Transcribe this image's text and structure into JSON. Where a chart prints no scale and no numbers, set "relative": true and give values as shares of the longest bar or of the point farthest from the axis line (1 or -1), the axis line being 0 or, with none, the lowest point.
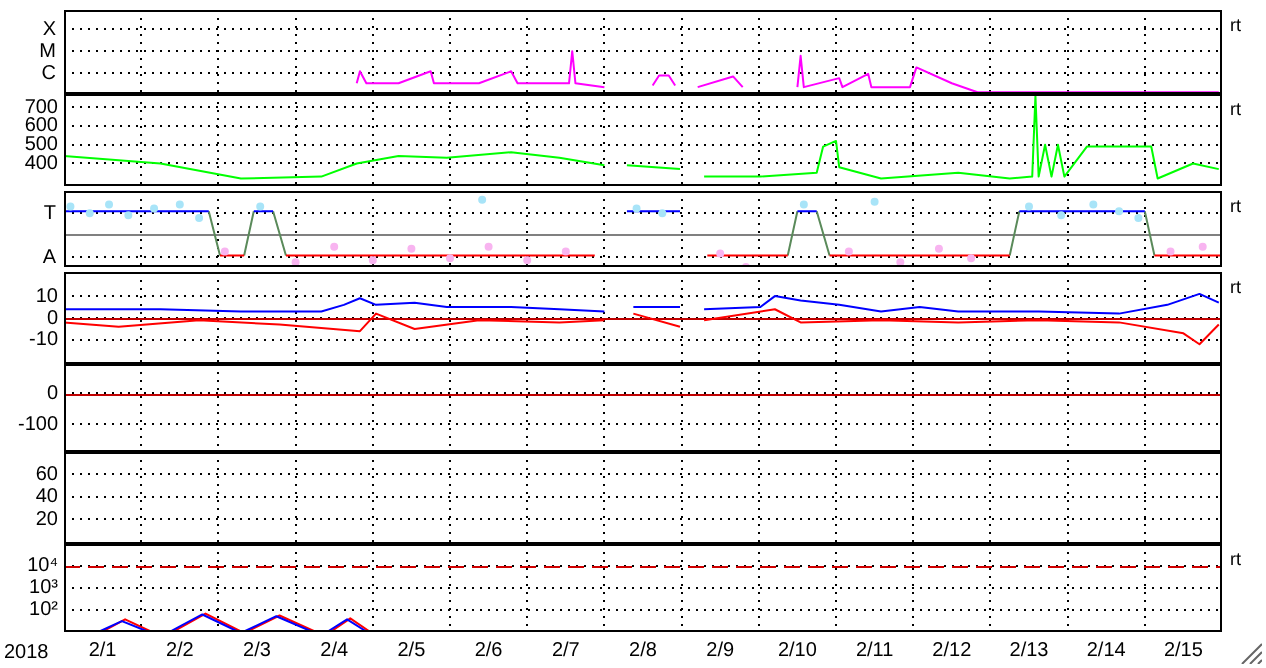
{
  "chart_data": [
    {
      "type": "line",
      "relative": true,
      "tick_labels": "y",
      "grid": true,
      "xlim": [
        "2018-02-01",
        "2018-02-16"
      ],
      "xticks": [
        {
          "value": "2018-02-02",
          "label": null
        },
        {
          "value": "2018-02-03",
          "label": null
        },
        {
          "value": "2018-02-04",
          "label": null
        },
        {
          "value": "2018-02-05",
          "label": null
        },
        {
          "value": "2018-02-06",
          "label": null
        },
        {
          "value": "2018-02-07",
          "label": null
        },
        {
          "value": "2018-02-08",
          "label": null
        },
        {
          "value": "2018-02-09",
          "label": null
        },
        {
          "value": "2018-02-10",
          "label": null
        },
        {
          "value": "2018-02-11",
          "label": null
        },
        {
          "value": "2018-02-12",
          "label": null
        },
        {
          "value": "2018-02-13",
          "label": null
        },
        {
          "value": "2018-02-14",
          "label": null
        },
        {
          "value": "2018-02-15",
          "label": null
        }
      ],
      "annotations": [
        "rt",
        "X",
        "M",
        "C"
      ],
      "series": [
        {
          "color": "#ff00ff",
          "x": [
            "2018-02-04T19:00",
            "2018-02-04T20:00",
            "2018-02-04T22:00",
            "2018-02-05T08:00",
            "2018-02-05T18:00",
            "2018-02-05T19:00",
            "2018-02-06T09:00",
            "2018-02-06T19:00",
            "2018-02-06T21:00",
            "2018-02-07T13:00",
            "2018-02-07T14:00",
            "2018-02-07T15:00",
            "2018-02-08T00:00",
            "2018-02-08T06:00",
            "2018-02-08T15:00",
            "2018-02-08T17:00",
            "2018-02-08T20:00",
            "2018-02-08T22:00",
            "2018-02-09T02:00",
            "2018-02-09T05:00",
            "2018-02-09T16:00",
            "2018-02-09T19:00",
            "2018-02-10T06:00",
            "2018-02-10T12:00",
            "2018-02-10T13:00",
            "2018-02-10T14:00",
            "2018-02-11T01:00",
            "2018-02-11T02:00",
            "2018-02-11T10:00",
            "2018-02-11T11:00",
            "2018-02-11T23:00",
            "2018-02-12T01:00",
            "2018-02-12T12:00",
            "2018-02-12T20:00",
            "2018-02-15T23:00"
          ],
          "values": [
            0.25,
            0.53,
            0.25,
            0.25,
            0.53,
            0.25,
            0.25,
            0.53,
            0.25,
            0.25,
            1,
            0.25,
            0.16,
            null,
            0.2,
            0.43,
            0.43,
            0.2,
            null,
            0.16,
            0.41,
            0.16,
            null,
            0.16,
            0.89,
            0.16,
            0.37,
            0.16,
            0.47,
            0.16,
            0.16,
            0.62,
            0.25,
            0.04,
            0.04
          ]
        }
      ]
    },
    {
      "type": "line",
      "tick_labels": "y",
      "grid": true,
      "xlim": [
        "2018-02-01",
        "2018-02-16"
      ],
      "xticks": [
        {
          "value": "2018-02-02",
          "label": null
        },
        {
          "value": "2018-02-03",
          "label": null
        },
        {
          "value": "2018-02-04",
          "label": null
        },
        {
          "value": "2018-02-05",
          "label": null
        },
        {
          "value": "2018-02-06",
          "label": null
        },
        {
          "value": "2018-02-07",
          "label": null
        },
        {
          "value": "2018-02-08",
          "label": null
        },
        {
          "value": "2018-02-09",
          "label": null
        },
        {
          "value": "2018-02-10",
          "label": null
        },
        {
          "value": "2018-02-11",
          "label": null
        },
        {
          "value": "2018-02-12",
          "label": null
        },
        {
          "value": "2018-02-13",
          "label": null
        },
        {
          "value": "2018-02-14",
          "label": null
        },
        {
          "value": "2018-02-15",
          "label": null
        }
      ],
      "ylim": [
        280,
        770
      ],
      "yticks": [
        400,
        500,
        600,
        700
      ],
      "annotations": [
        "rt"
      ],
      "series": [
        {
          "color": "#00ff00",
          "x": [
            "2018-02-01T00:00",
            "2018-02-02T06:00",
            "2018-02-03T07:00",
            "2018-02-04T08:00",
            "2018-02-04T19:00",
            "2018-02-05T08:00",
            "2018-02-05T23:00",
            "2018-02-06T19:00",
            "2018-02-07T10:00",
            "2018-02-08T00:00",
            "2018-02-08T03:00",
            "2018-02-08T07:00",
            "2018-02-08T23:30",
            "2018-02-09T03:00",
            "2018-02-09T07:00",
            "2018-02-10T00:30",
            "2018-02-10T18:00",
            "2018-02-10T20:00",
            "2018-02-11T00:00",
            "2018-02-11T01:00",
            "2018-02-11T14:00",
            "2018-02-12T14:00",
            "2018-02-13T06:00",
            "2018-02-13T13:00",
            "2018-02-13T14:00",
            "2018-02-13T15:00",
            "2018-02-13T17:00",
            "2018-02-13T19:00",
            "2018-02-13T21:00",
            "2018-02-13T23:00",
            "2018-02-14T06:00",
            "2018-02-14T19:00",
            "2018-02-15T02:00",
            "2018-02-15T04:00",
            "2018-02-15T15:00",
            "2018-02-15T23:00"
          ],
          "values": [
            440,
            400,
            320,
            330,
            400,
            440,
            430,
            460,
            430,
            390,
            null,
            390,
            370,
            null,
            330,
            330,
            350,
            490,
            520,
            380,
            320,
            350,
            320,
            330,
            760,
            330,
            500,
            330,
            500,
            330,
            490,
            490,
            490,
            320,
            400,
            370
          ]
        }
      ]
    },
    {
      "type": "line",
      "relative": true,
      "tick_labels": "y",
      "grid": true,
      "xlim": [
        "2018-02-01",
        "2018-02-16"
      ],
      "xticks": [
        {
          "value": "2018-02-02",
          "label": null
        },
        {
          "value": "2018-02-03",
          "label": null
        },
        {
          "value": "2018-02-04",
          "label": null
        },
        {
          "value": "2018-02-05",
          "label": null
        },
        {
          "value": "2018-02-06",
          "label": null
        },
        {
          "value": "2018-02-07",
          "label": null
        },
        {
          "value": "2018-02-08",
          "label": null
        },
        {
          "value": "2018-02-09",
          "label": null
        },
        {
          "value": "2018-02-10",
          "label": null
        },
        {
          "value": "2018-02-11",
          "label": null
        },
        {
          "value": "2018-02-12",
          "label": null
        },
        {
          "value": "2018-02-13",
          "label": null
        },
        {
          "value": "2018-02-14",
          "label": null
        },
        {
          "value": "2018-02-15",
          "label": null
        }
      ],
      "annotations": [
        "rt",
        "T",
        "A"
      ],
      "ref_lines": [
        {
          "axis": "y",
          "value": 0.5,
          "color": "#808080"
        }
      ],
      "series": [
        {
          "type": "scatter",
          "color": "#a8e4f8",
          "x": [
            "2018-02-01T02:00",
            "2018-02-01T08:00",
            "2018-02-01T14:00",
            "2018-02-01T20:00",
            "2018-02-02T04:00",
            "2018-02-02T12:00",
            "2018-02-02T18:00",
            "2018-02-03T13:00",
            "2018-02-06T10:00",
            "2018-02-08T10:00",
            "2018-02-08T18:00",
            "2018-02-10T14:00",
            "2018-02-11T12:00",
            "2018-02-13T12:00",
            "2018-02-13T22:00",
            "2018-02-14T08:00",
            "2018-02-14T16:00",
            "2018-02-14T22:00"
          ],
          "values": [
            0.9,
            0.8,
            0.93,
            0.77,
            0.87,
            0.93,
            0.73,
            0.9,
            1,
            0.87,
            0.8,
            0.93,
            0.97,
            0.9,
            0.77,
            0.93,
            0.83,
            0.73
          ]
        },
        {
          "type": "scatter",
          "color": "#f8b4f0",
          "x": [
            "2018-02-03T02:00",
            "2018-02-04T00:00",
            "2018-02-04T12:00",
            "2018-02-05T00:00",
            "2018-02-05T12:00",
            "2018-02-06T00:00",
            "2018-02-06T12:00",
            "2018-02-07T00:00",
            "2018-02-07T12:00",
            "2018-02-09T12:00",
            "2018-02-09T20:00",
            "2018-02-11T04:00",
            "2018-02-11T20:00",
            "2018-02-12T08:00",
            "2018-02-12T18:00",
            "2018-02-15T08:00",
            "2018-02-15T18:00"
          ],
          "values": [
            0.23,
            0.07,
            0.3,
            0.1,
            0.27,
            0.13,
            0.3,
            0.1,
            0.23,
            0.2,
            0,
            0.23,
            0.07,
            0.27,
            0.13,
            0.23,
            0.3
          ]
        },
        {
          "color": "#0000ff",
          "x": [
            "2018-02-01T00:00",
            "2018-02-02T21:00",
            "2018-02-03T05:00",
            "2018-02-03T11:00",
            "2018-02-03T17:00",
            "2018-02-05T00:00",
            "2018-02-08T07:00",
            "2018-02-08T23:30",
            "2018-02-09T00:00",
            "2018-02-10T12:00",
            "2018-02-10T18:00",
            "2018-02-12T00:00",
            "2018-02-13T09:00",
            "2018-02-15T00:00"
          ],
          "values": [
            0.83,
            0.83,
            null,
            0.83,
            0.83,
            null,
            0.83,
            0.83,
            null,
            0.83,
            0.83,
            null,
            0.83,
            0.83
          ]
        },
        {
          "color": "#ff0000",
          "x": [
            "2018-02-03T00:30",
            "2018-02-03T08:00",
            "2018-02-03T10:00",
            "2018-02-03T21:00",
            "2018-02-07T21:00",
            "2018-02-08T12:00",
            "2018-02-09T08:00",
            "2018-02-10T09:00",
            "2018-02-10T15:00",
            "2018-02-10T22:00",
            "2018-02-13T06:00",
            "2018-02-14T00:00",
            "2018-02-15T03:00",
            "2018-02-16T00:00"
          ],
          "values": [
            0.17,
            0.17,
            null,
            0.17,
            0.17,
            null,
            0.17,
            0.17,
            null,
            0.17,
            0.17,
            null,
            0.17,
            0.17
          ]
        },
        {
          "color": "#5a8a5a",
          "x": [
            "2018-02-02T21:00",
            "2018-02-03T00:30",
            "2018-02-03T05:00",
            "2018-02-03T08:00",
            "2018-02-03T11:00",
            "2018-02-03T14:00",
            "2018-02-03T17:00",
            "2018-02-03T21:00",
            "2018-02-05T00:00",
            "2018-02-10T09:00",
            "2018-02-10T12:00",
            "2018-02-10T15:00",
            "2018-02-10T18:00",
            "2018-02-10T22:00",
            "2018-02-12T00:00",
            "2018-02-13T06:00",
            "2018-02-13T09:00",
            "2018-02-14T00:00",
            "2018-02-15T00:00",
            "2018-02-15T03:00"
          ],
          "values": [
            0.83,
            0.17,
            null,
            0.17,
            0.83,
            null,
            0.83,
            0.17,
            null,
            0.17,
            0.83,
            null,
            0.83,
            0.17,
            null,
            0.17,
            0.83,
            null,
            0.83,
            0.17
          ]
        }
      ]
    },
    {
      "type": "line",
      "tick_labels": "y",
      "grid": true,
      "xlim": [
        "2018-02-01",
        "2018-02-16"
      ],
      "xticks": [
        {
          "value": "2018-02-02",
          "label": null
        },
        {
          "value": "2018-02-03",
          "label": null
        },
        {
          "value": "2018-02-04",
          "label": null
        },
        {
          "value": "2018-02-05",
          "label": null
        },
        {
          "value": "2018-02-06",
          "label": null
        },
        {
          "value": "2018-02-07",
          "label": null
        },
        {
          "value": "2018-02-08",
          "label": null
        },
        {
          "value": "2018-02-09",
          "label": null
        },
        {
          "value": "2018-02-10",
          "label": null
        },
        {
          "value": "2018-02-11",
          "label": null
        },
        {
          "value": "2018-02-12",
          "label": null
        },
        {
          "value": "2018-02-13",
          "label": null
        },
        {
          "value": "2018-02-14",
          "label": null
        },
        {
          "value": "2018-02-15",
          "label": null
        }
      ],
      "ylim": [
        -21,
        21
      ],
      "yticks": [
        10,
        0,
        -10
      ],
      "annotations": [
        "rt"
      ],
      "ref_lines": [
        {
          "axis": "y",
          "value": 0,
          "color": "#c00000"
        }
      ],
      "series": [
        {
          "color": "#0000ff",
          "x": [
            "2018-02-01T00:00",
            "2018-02-02T06:00",
            "2018-02-03T07:00",
            "2018-02-04T08:00",
            "2018-02-04T15:00",
            "2018-02-04T20:00",
            "2018-02-05T01:00",
            "2018-02-05T13:00",
            "2018-02-05T23:00",
            "2018-02-06T19:00",
            "2018-02-07T10:00",
            "2018-02-08T00:00",
            "2018-02-08T04:00",
            "2018-02-08T09:00",
            "2018-02-08T23:30",
            "2018-02-09T03:00",
            "2018-02-09T07:00",
            "2018-02-10T00:30",
            "2018-02-10T05:00",
            "2018-02-10T13:00",
            "2018-02-11T01:00",
            "2018-02-11T14:00",
            "2018-02-12T02:00",
            "2018-02-12T14:00",
            "2018-02-13T15:00",
            "2018-02-14T16:00",
            "2018-02-15T07:00",
            "2018-02-15T17:00",
            "2018-02-15T23:00"
          ],
          "values": [
            4,
            4,
            3,
            3,
            6,
            9,
            6,
            7,
            5,
            5,
            4,
            3,
            null,
            5,
            5,
            null,
            4,
            5,
            10,
            8,
            6,
            3,
            5,
            3,
            3,
            2,
            6,
            11,
            7
          ]
        },
        {
          "color": "#ff0000",
          "x": [
            "2018-02-01T00:00",
            "2018-02-01T17:00",
            "2018-02-02T18:00",
            "2018-02-03T19:00",
            "2018-02-04T20:00",
            "2018-02-05T01:00",
            "2018-02-05T13:00",
            "2018-02-06T09:00",
            "2018-02-07T10:00",
            "2018-02-08T00:00",
            "2018-02-08T04:00",
            "2018-02-08T09:00",
            "2018-02-08T23:30",
            "2018-02-09T03:00",
            "2018-02-09T07:00",
            "2018-02-10T05:00",
            "2018-02-10T13:00",
            "2018-02-11T14:00",
            "2018-02-12T14:00",
            "2018-02-13T15:00",
            "2018-02-14T16:00",
            "2018-02-15T12:00",
            "2018-02-15T17:00",
            "2018-02-15T23:00"
          ],
          "values": [
            -2,
            -4,
            -1,
            -3,
            -6,
            2,
            -5,
            -1,
            -2,
            -1,
            null,
            2,
            -4,
            null,
            -1,
            4,
            -2,
            -1,
            -2,
            -1,
            -2,
            -7,
            -12,
            -3
          ]
        }
      ]
    },
    {
      "type": "line",
      "tick_labels": "y",
      "grid": true,
      "xlim": [
        "2018-02-01",
        "2018-02-16"
      ],
      "xticks": [
        {
          "value": "2018-02-02",
          "label": null
        },
        {
          "value": "2018-02-03",
          "label": null
        },
        {
          "value": "2018-02-04",
          "label": null
        },
        {
          "value": "2018-02-05",
          "label": null
        },
        {
          "value": "2018-02-06",
          "label": null
        },
        {
          "value": "2018-02-07",
          "label": null
        },
        {
          "value": "2018-02-08",
          "label": null
        },
        {
          "value": "2018-02-09",
          "label": null
        },
        {
          "value": "2018-02-10",
          "label": null
        },
        {
          "value": "2018-02-11",
          "label": null
        },
        {
          "value": "2018-02-12",
          "label": null
        },
        {
          "value": "2018-02-13",
          "label": null
        },
        {
          "value": "2018-02-14",
          "label": null
        },
        {
          "value": "2018-02-15",
          "label": null
        }
      ],
      "ylim": [
        -190,
        95
      ],
      "yticks": [
        0,
        -100
      ],
      "ref_lines": [
        {
          "axis": "y",
          "value": 0,
          "color": "#c00000"
        }
      ]
    },
    {
      "type": "line",
      "tick_labels": "y",
      "grid": true,
      "xlim": [
        "2018-02-01",
        "2018-02-16"
      ],
      "xticks": [
        {
          "value": "2018-02-02",
          "label": null
        },
        {
          "value": "2018-02-03",
          "label": null
        },
        {
          "value": "2018-02-04",
          "label": null
        },
        {
          "value": "2018-02-05",
          "label": null
        },
        {
          "value": "2018-02-06",
          "label": null
        },
        {
          "value": "2018-02-07",
          "label": null
        },
        {
          "value": "2018-02-08",
          "label": null
        },
        {
          "value": "2018-02-09",
          "label": null
        },
        {
          "value": "2018-02-10",
          "label": null
        },
        {
          "value": "2018-02-11",
          "label": null
        },
        {
          "value": "2018-02-12",
          "label": null
        },
        {
          "value": "2018-02-13",
          "label": null
        },
        {
          "value": "2018-02-14",
          "label": null
        },
        {
          "value": "2018-02-15",
          "label": null
        }
      ],
      "ylim": [
        -2,
        80
      ],
      "yticks": [
        60,
        40,
        20
      ]
    },
    {
      "type": "line",
      "grid": true,
      "log": true,
      "xlabel": "2018",
      "xlim": [
        "2018-02-01",
        "2018-02-16"
      ],
      "xticks": [
        {
          "value": "2018-02-01T12:00",
          "label": "2/1"
        },
        {
          "value": "2018-02-02",
          "label": null
        },
        {
          "value": "2018-02-02T12:00",
          "label": "2/2"
        },
        {
          "value": "2018-02-03",
          "label": null
        },
        {
          "value": "2018-02-03T12:00",
          "label": "2/3"
        },
        {
          "value": "2018-02-04",
          "label": null
        },
        {
          "value": "2018-02-04T12:00",
          "label": "2/4"
        },
        {
          "value": "2018-02-05",
          "label": null
        },
        {
          "value": "2018-02-05T12:00",
          "label": "2/5"
        },
        {
          "value": "2018-02-06",
          "label": null
        },
        {
          "value": "2018-02-06T12:00",
          "label": "2/6"
        },
        {
          "value": "2018-02-07",
          "label": null
        },
        {
          "value": "2018-02-07T12:00",
          "label": "2/7"
        },
        {
          "value": "2018-02-08",
          "label": null
        },
        {
          "value": "2018-02-08T12:00",
          "label": "2/8"
        },
        {
          "value": "2018-02-09",
          "label": null
        },
        {
          "value": "2018-02-09T12:00",
          "label": "2/9"
        },
        {
          "value": "2018-02-10",
          "label": null
        },
        {
          "value": "2018-02-10T12:00",
          "label": "2/10"
        },
        {
          "value": "2018-02-11",
          "label": null
        },
        {
          "value": "2018-02-11T12:00",
          "label": "2/11"
        },
        {
          "value": "2018-02-12",
          "label": null
        },
        {
          "value": "2018-02-12T12:00",
          "label": "2/12"
        },
        {
          "value": "2018-02-13",
          "label": null
        },
        {
          "value": "2018-02-13T12:00",
          "label": "2/13"
        },
        {
          "value": "2018-02-14",
          "label": null
        },
        {
          "value": "2018-02-14T12:00",
          "label": "2/14"
        },
        {
          "value": "2018-02-15",
          "label": null
        },
        {
          "value": "2018-02-15T12:00",
          "label": "2/15"
        }
      ],
      "ylim": [
        9.5,
        100000
      ],
      "yticks": [
        {
          "value": 100,
          "label": "10²"
        },
        {
          "value": 1000,
          "label": "10³"
        },
        {
          "value": 10000,
          "label": "10⁴"
        }
      ],
      "annotations": [
        "rt"
      ],
      "ref_lines": [
        {
          "axis": "y",
          "value": 10000,
          "color": "#d00000",
          "line_style": "dashed"
        }
      ],
      "series": [
        {
          "color": "#0000ff",
          "x": [
            "2018-02-01T11:00",
            "2018-02-01T18:00",
            "2018-02-02T02:00",
            "2018-02-02T05:00",
            "2018-02-02T09:00",
            "2018-02-02T19:00",
            "2018-02-03T06:00",
            "2018-02-03T07:00",
            "2018-02-03T08:00",
            "2018-02-03T18:00",
            "2018-02-04T05:00",
            "2018-02-04T08:00",
            "2018-02-04T10:00",
            "2018-02-04T16:00",
            "2018-02-04T22:00"
          ],
          "values": [
            10,
            30,
            10,
            null,
            10,
            60,
            10,
            null,
            10,
            50,
            10,
            null,
            10,
            36,
            10
          ]
        },
        {
          "color": "#ff0000",
          "x": [
            "2018-02-01T12:00",
            "2018-02-01T19:00",
            "2018-02-02T03:00",
            "2018-02-02T06:00",
            "2018-02-02T10:00",
            "2018-02-02T20:00",
            "2018-02-03T07:00",
            "2018-02-03T08:00",
            "2018-02-03T09:00",
            "2018-02-03T19:00",
            "2018-02-04T06:00",
            "2018-02-04T09:00",
            "2018-02-04T11:00",
            "2018-02-04T17:00",
            "2018-02-04T23:00"
          ],
          "values": [
            10,
            36,
            10,
            null,
            10,
            66,
            10,
            null,
            10,
            54,
            10,
            null,
            10,
            40,
            10
          ]
        }
      ]
    }
  ]
}
